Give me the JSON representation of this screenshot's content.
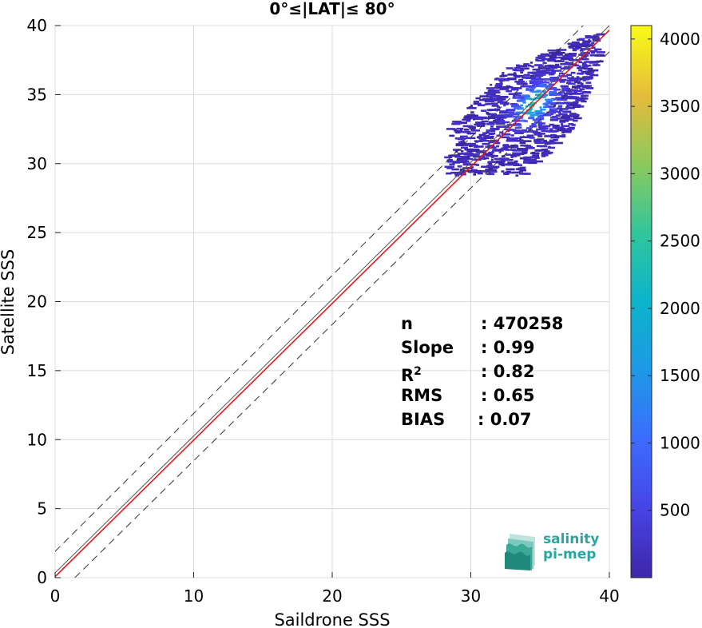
{
  "chart_data": {
    "type": "heatmap",
    "title": "0°≤|LAT|≤ 80°",
    "xlabel": "Saildrone SSS",
    "ylabel": "Satellite SSS",
    "xlim": [
      0,
      40
    ],
    "ylim": [
      0,
      40
    ],
    "xticks": [
      "0",
      "10",
      "20",
      "30",
      "40"
    ],
    "yticks": [
      "0",
      "5",
      "10",
      "15",
      "20",
      "25",
      "30",
      "35",
      "40"
    ],
    "grid": true,
    "colorbar": {
      "range": [
        0,
        4100
      ],
      "ticks": [
        "500",
        "1000",
        "1500",
        "2000",
        "2500",
        "3000",
        "3500",
        "4000"
      ],
      "colormap": "parula"
    },
    "reference_lines": {
      "one_to_one": {
        "color": "#555555",
        "x": [
          0,
          40
        ],
        "y": [
          0.35,
          40
        ]
      },
      "fit": {
        "color": "#e31a1c",
        "slope": 0.99,
        "intercept": 0.07
      },
      "bounds": {
        "style": "dashed",
        "offset": 1.9
      }
    },
    "density_cluster": {
      "x_range": [
        28,
        39.2
      ],
      "y_range": [
        29.2,
        39.5
      ],
      "peak": [
        34.3,
        34.5
      ]
    },
    "stats": {
      "n_label": "n",
      "n_value": ": 470258",
      "slope_label": "Slope",
      "slope_value": ": 0.99",
      "r2_label": "R",
      "r2_sup": "2",
      "r2_value": ": 0.82",
      "rms_label": "RMS",
      "rms_value": ": 0.65",
      "bias_label": "BIAS",
      "bias_value": ": 0.07"
    }
  },
  "logo": {
    "line1": "salinity",
    "line2": "pi-mep"
  }
}
